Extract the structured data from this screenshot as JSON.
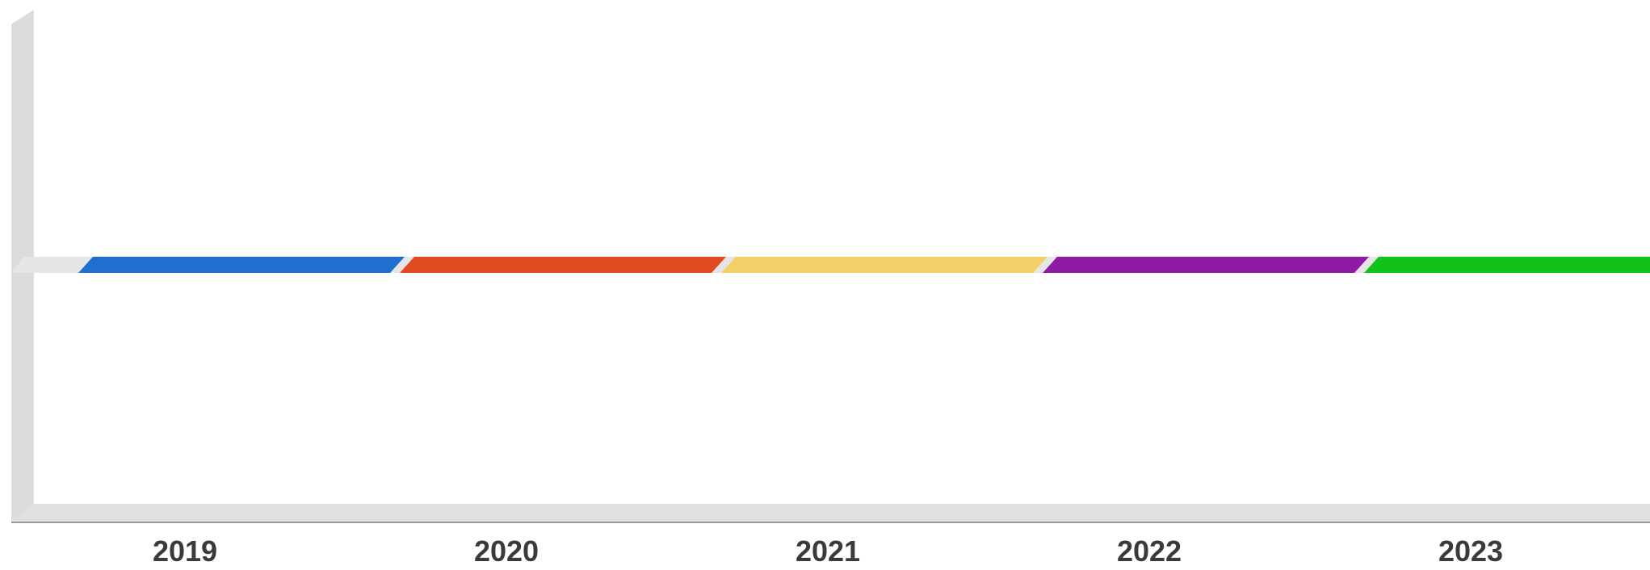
{
  "chart_data": {
    "type": "bar",
    "style": "3d-flat",
    "categories": [
      "2019",
      "2020",
      "2021",
      "2022",
      "2023"
    ],
    "values": [
      0,
      0,
      0,
      0,
      0
    ],
    "title": "",
    "xlabel": "",
    "ylabel": "",
    "grid": false,
    "legend": "none",
    "colors": [
      "#1f6fd1",
      "#e04a1e",
      "#f3cf6a",
      "#8e1aa6",
      "#12c21a"
    ],
    "frame_colors": {
      "wall": "#d6d6d6",
      "floor": "#dcdcdc",
      "baseline_plane": "#e6e6e6",
      "axis_line": "#8a8a8a",
      "tick_text": "#3a3a3a"
    }
  }
}
